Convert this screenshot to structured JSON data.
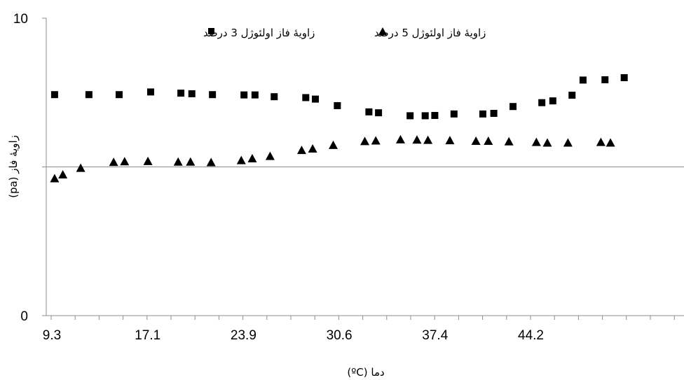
{
  "chart_data": {
    "type": "scatter",
    "title": "",
    "xlabel": "دما (ºC)",
    "ylabel": "زاویۀ فاز (pa)",
    "xlim": [
      9.3,
      49.6
    ],
    "ylim": [
      0,
      10
    ],
    "x_ticks": [
      "9.3",
      "17.1",
      "23.9",
      "30.6",
      "37.4",
      "44.2"
    ],
    "y_ticks": [
      "0",
      "",
      "10"
    ],
    "grid": "horizontal",
    "legend_position": "top",
    "series": [
      {
        "name": "زاویۀ فاز اولئوژل 3 درصد",
        "marker": "square",
        "color": "#000000",
        "x": [
          9.5,
          12.0,
          14.2,
          16.5,
          18.7,
          19.5,
          21.0,
          23.3,
          24.1,
          25.5,
          27.8,
          28.5,
          30.1,
          32.4,
          33.1,
          35.4,
          36.5,
          37.2,
          38.6,
          40.7,
          41.5,
          42.9,
          45.0,
          45.8,
          47.2,
          48.0,
          49.6,
          51.0
        ],
        "y": [
          7.43,
          7.43,
          7.43,
          7.52,
          7.48,
          7.46,
          7.43,
          7.42,
          7.42,
          7.36,
          7.33,
          7.28,
          7.06,
          6.85,
          6.82,
          6.72,
          6.72,
          6.73,
          6.78,
          6.78,
          6.8,
          7.03,
          7.16,
          7.22,
          7.41,
          7.92,
          7.93,
          8.0
        ]
      },
      {
        "name": "زاویۀ فاز اولئوژل 5 درصد",
        "marker": "triangle",
        "color": "#000000",
        "x": [
          9.5,
          10.1,
          11.4,
          13.8,
          14.6,
          16.3,
          18.5,
          19.4,
          20.9,
          23.1,
          23.9,
          25.2,
          27.5,
          28.3,
          29.8,
          32.1,
          32.9,
          34.7,
          35.9,
          36.7,
          38.3,
          40.2,
          41.1,
          42.6,
          44.6,
          45.4,
          46.9,
          49.3,
          50.0
        ],
        "y": [
          4.6,
          4.73,
          4.95,
          5.15,
          5.17,
          5.18,
          5.16,
          5.16,
          5.14,
          5.21,
          5.27,
          5.35,
          5.55,
          5.6,
          5.72,
          5.85,
          5.87,
          5.91,
          5.9,
          5.89,
          5.88,
          5.86,
          5.86,
          5.84,
          5.82,
          5.8,
          5.8,
          5.82,
          5.8
        ]
      }
    ]
  }
}
